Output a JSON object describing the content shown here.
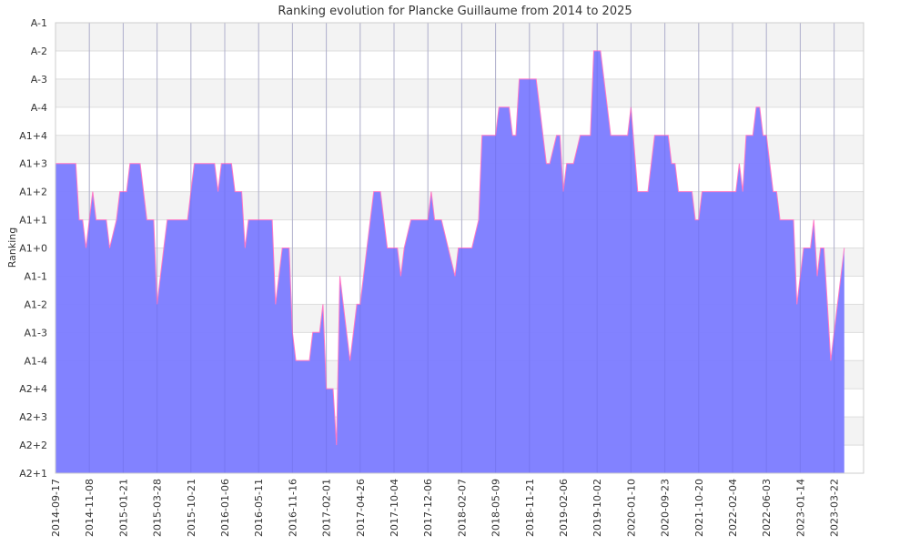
{
  "chart_data": {
    "type": "area",
    "title": "Ranking evolution for Plancke Guillaume from 2014 to 2025",
    "xlabel": "",
    "ylabel": "Ranking",
    "ranks": [
      "A2+1",
      "A2+2",
      "A2+3",
      "A2+4",
      "A1-4",
      "A1-3",
      "A1-2",
      "A1-1",
      "A1+0",
      "A1+1",
      "A1+2",
      "A1+3",
      "A1+4",
      "A-4",
      "A-3",
      "A-2",
      "A-1"
    ],
    "x_ticks": [
      "2014-09-17",
      "2014-11-08",
      "2015-01-21",
      "2015-03-28",
      "2015-10-21",
      "2016-01-06",
      "2016-05-11",
      "2016-11-16",
      "2017-02-01",
      "2017-04-26",
      "2017-10-04",
      "2017-12-06",
      "2018-02-07",
      "2018-05-09",
      "2018-11-21",
      "2019-02-06",
      "2019-10-02",
      "2020-01-10",
      "2020-09-23",
      "2021-10-20",
      "2022-02-04",
      "2022-06-03",
      "2023-01-14",
      "2023-03-22"
    ],
    "grid": true,
    "series": [
      {
        "name": "",
        "color": "#7b7bff",
        "line_color": "#ff79c6",
        "points": [
          [
            0,
            "A1+3"
          ],
          [
            0.6,
            "A1+3"
          ],
          [
            0.7,
            "A1+1"
          ],
          [
            0.8,
            "A1+1"
          ],
          [
            0.9,
            "A1+0"
          ],
          [
            1.1,
            "A1+2"
          ],
          [
            1.2,
            "A1+1"
          ],
          [
            1.5,
            "A1+1"
          ],
          [
            1.6,
            "A1+0"
          ],
          [
            1.8,
            "A1+1"
          ],
          [
            1.9,
            "A1+2"
          ],
          [
            2.1,
            "A1+2"
          ],
          [
            2.2,
            "A1+3"
          ],
          [
            2.5,
            "A1+3"
          ],
          [
            2.6,
            "A1+2"
          ],
          [
            2.7,
            "A1+1"
          ],
          [
            2.9,
            "A1+1"
          ],
          [
            3.0,
            "A1-2"
          ],
          [
            3.1,
            "A1-1"
          ],
          [
            3.2,
            "A1+0"
          ],
          [
            3.3,
            "A1+1"
          ],
          [
            3.9,
            "A1+1"
          ],
          [
            4.0,
            "A1+2"
          ],
          [
            4.1,
            "A1+3"
          ],
          [
            4.7,
            "A1+3"
          ],
          [
            4.8,
            "A1+2"
          ],
          [
            4.9,
            "A1+3"
          ],
          [
            5.2,
            "A1+3"
          ],
          [
            5.3,
            "A1+2"
          ],
          [
            5.5,
            "A1+2"
          ],
          [
            5.6,
            "A1+0"
          ],
          [
            5.7,
            "A1+1"
          ],
          [
            6.4,
            "A1+1"
          ],
          [
            6.5,
            "A1-2"
          ],
          [
            6.6,
            "A1-1"
          ],
          [
            6.7,
            "A1+0"
          ],
          [
            6.9,
            "A1+0"
          ],
          [
            7.0,
            "A1-3"
          ],
          [
            7.1,
            "A1-4"
          ],
          [
            7.5,
            "A1-4"
          ],
          [
            7.6,
            "A1-3"
          ],
          [
            7.8,
            "A1-3"
          ],
          [
            7.9,
            "A1-2"
          ],
          [
            8.0,
            "A2+4"
          ],
          [
            8.2,
            "A2+4"
          ],
          [
            8.3,
            "A2+2"
          ],
          [
            8.4,
            "A1-1"
          ],
          [
            8.5,
            "A1-2"
          ],
          [
            8.6,
            "A1-3"
          ],
          [
            8.7,
            "A1-4"
          ],
          [
            8.8,
            "A1-3"
          ],
          [
            8.9,
            "A1-2"
          ],
          [
            9.0,
            "A1-2"
          ],
          [
            9.2,
            "A1+0"
          ],
          [
            9.4,
            "A1+2"
          ],
          [
            9.6,
            "A1+2"
          ],
          [
            9.8,
            "A1+0"
          ],
          [
            10.1,
            "A1+0"
          ],
          [
            10.2,
            "A1-1"
          ],
          [
            10.3,
            "A1+0"
          ],
          [
            10.5,
            "A1+1"
          ],
          [
            11.0,
            "A1+1"
          ],
          [
            11.1,
            "A1+2"
          ],
          [
            11.2,
            "A1+1"
          ],
          [
            11.4,
            "A1+1"
          ],
          [
            11.6,
            "A1+0"
          ],
          [
            11.8,
            "A1-1"
          ],
          [
            11.9,
            "A1+0"
          ],
          [
            12.3,
            "A1+0"
          ],
          [
            12.5,
            "A1+1"
          ],
          [
            12.6,
            "A1+4"
          ],
          [
            13.0,
            "A1+4"
          ],
          [
            13.1,
            "A-4"
          ],
          [
            13.4,
            "A-4"
          ],
          [
            13.5,
            "A1+4"
          ],
          [
            13.6,
            "A1+4"
          ],
          [
            13.7,
            "A-3"
          ],
          [
            14.2,
            "A-3"
          ],
          [
            14.5,
            "A1+3"
          ],
          [
            14.6,
            "A1+3"
          ],
          [
            14.8,
            "A1+4"
          ],
          [
            14.9,
            "A1+4"
          ],
          [
            15.0,
            "A1+2"
          ],
          [
            15.1,
            "A1+3"
          ],
          [
            15.3,
            "A1+3"
          ],
          [
            15.5,
            "A1+4"
          ],
          [
            15.8,
            "A1+4"
          ],
          [
            15.9,
            "A-2"
          ],
          [
            16.1,
            "A-2"
          ],
          [
            16.3,
            "A-4"
          ],
          [
            16.4,
            "A1+4"
          ],
          [
            16.9,
            "A1+4"
          ],
          [
            17.0,
            "A-4"
          ],
          [
            17.2,
            "A1+2"
          ],
          [
            17.5,
            "A1+2"
          ],
          [
            17.7,
            "A1+4"
          ],
          [
            18.1,
            "A1+4"
          ],
          [
            18.2,
            "A1+3"
          ],
          [
            18.3,
            "A1+3"
          ],
          [
            18.4,
            "A1+2"
          ],
          [
            18.8,
            "A1+2"
          ],
          [
            18.9,
            "A1+1"
          ],
          [
            19.0,
            "A1+1"
          ],
          [
            19.1,
            "A1+2"
          ],
          [
            19.8,
            "A1+2"
          ],
          [
            20.1,
            "A1+2"
          ],
          [
            20.2,
            "A1+3"
          ],
          [
            20.3,
            "A1+2"
          ],
          [
            20.4,
            "A1+4"
          ],
          [
            20.6,
            "A1+4"
          ],
          [
            20.7,
            "A-4"
          ],
          [
            20.8,
            "A-4"
          ],
          [
            20.9,
            "A1+4"
          ],
          [
            21.0,
            "A1+4"
          ],
          [
            21.2,
            "A1+2"
          ],
          [
            21.3,
            "A1+2"
          ],
          [
            21.4,
            "A1+1"
          ],
          [
            21.8,
            "A1+1"
          ],
          [
            21.9,
            "A1-2"
          ],
          [
            22.1,
            "A1+0"
          ],
          [
            22.3,
            "A1+0"
          ],
          [
            22.4,
            "A1+1"
          ],
          [
            22.5,
            "A1-1"
          ],
          [
            22.6,
            "A1+0"
          ],
          [
            22.7,
            "A1+0"
          ],
          [
            22.8,
            "A1-2"
          ],
          [
            22.9,
            "A1-4"
          ],
          [
            23.1,
            "A1-2"
          ],
          [
            23.3,
            "A1+0"
          ]
        ]
      }
    ]
  }
}
